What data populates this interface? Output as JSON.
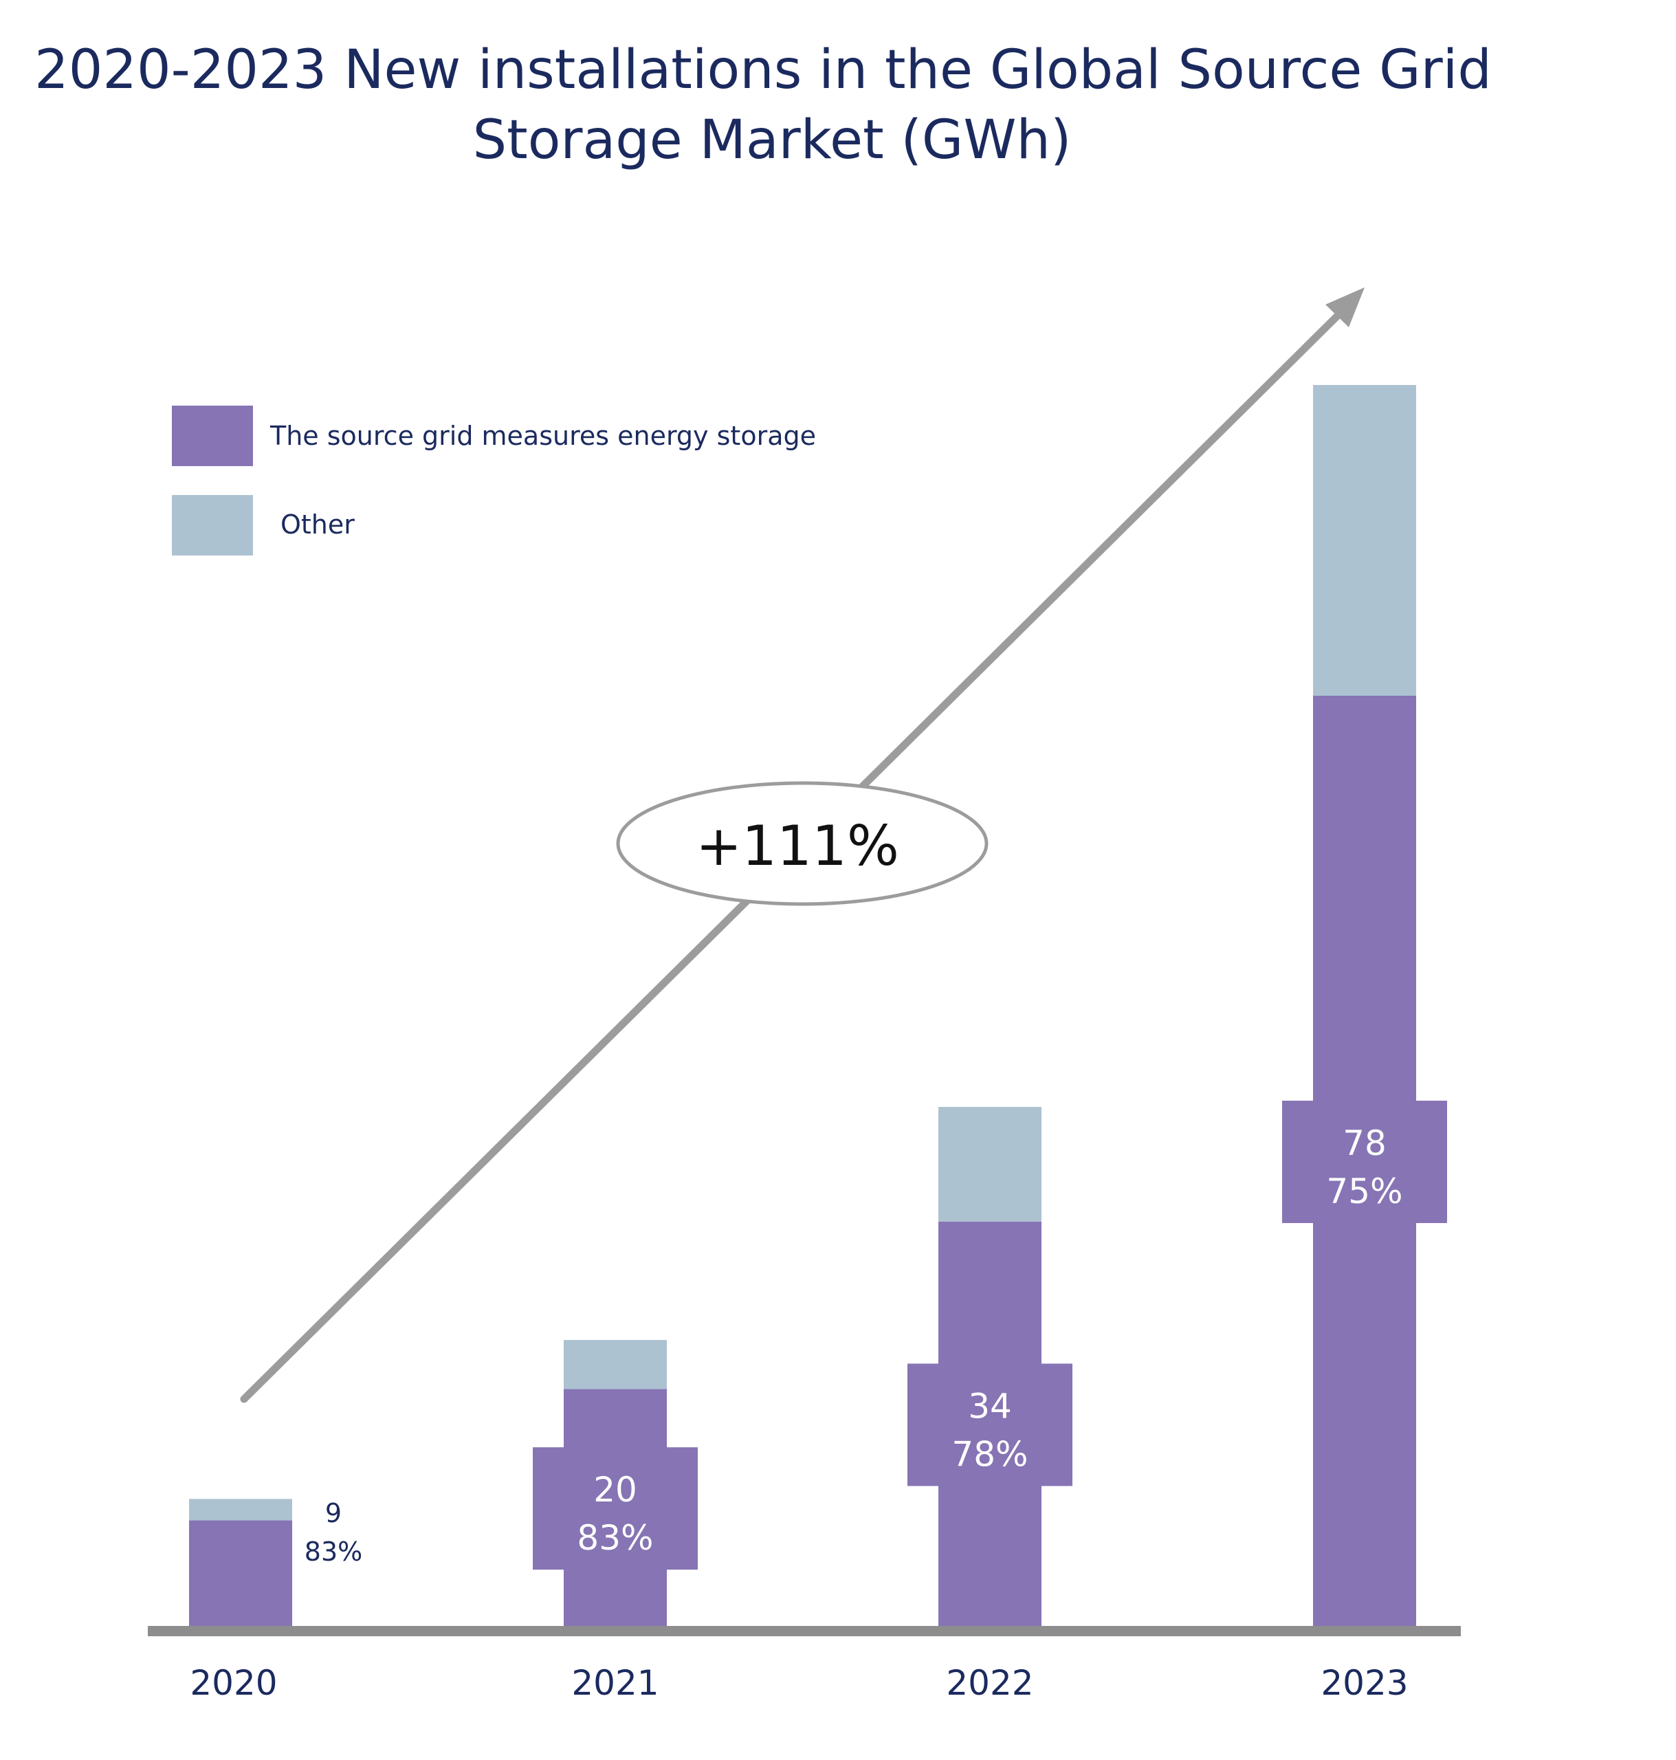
{
  "chart_data": {
    "type": "bar",
    "stacked": true,
    "title_lines": [
      "2020-2023 New installations in the Global Source Grid",
      "Storage Market (GWh)"
    ],
    "xlabel": "",
    "ylabel": "",
    "categories": [
      "2020",
      "2021",
      "2022",
      "2023"
    ],
    "series": [
      {
        "name": "The source grid measures energy storage",
        "color": "#8674b4",
        "values": [
          9,
          20,
          34,
          78
        ]
      },
      {
        "name": "Other",
        "color": "#adc2d1",
        "values": [
          1.8,
          4.1,
          9.6,
          26
        ]
      }
    ],
    "data_labels": [
      {
        "value": "9",
        "share": "83%"
      },
      {
        "value": "20",
        "share": "83%"
      },
      {
        "value": "34",
        "share": "78%"
      },
      {
        "value": "78",
        "share": "75%"
      }
    ],
    "annotation": "+111%",
    "ylim": [
      0,
      104
    ],
    "grid": false,
    "legend_position": "top-left"
  }
}
